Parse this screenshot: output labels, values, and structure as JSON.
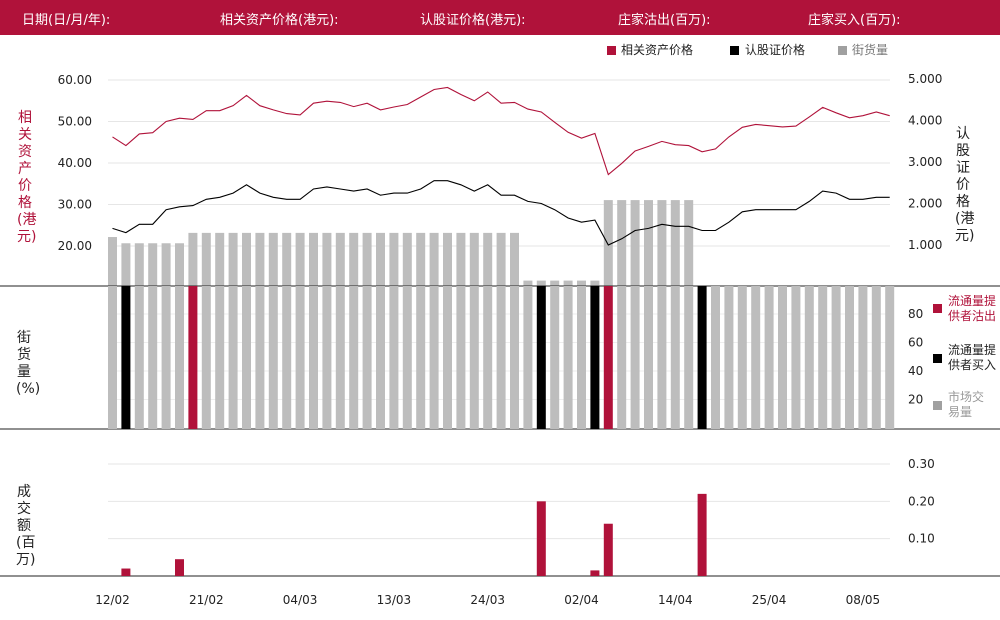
{
  "header": {
    "date_label": "日期(日/月/年):",
    "asset_price_label": "相关资产价格(港元):",
    "warrant_price_label": "认股证价格(港元):",
    "mm_sell_label": "庄家沽出(百万):",
    "mm_buy_label": "庄家买入(百万):"
  },
  "colors": {
    "brand": "#b0123a",
    "warrant": "#000000",
    "grey": "#bdbdbd"
  },
  "legend_top": [
    "相关资产价格",
    "认股证价格",
    "街货量"
  ],
  "legend_right": [
    "流通量提供者沽出",
    "流通量提供者买入",
    "市场交易量"
  ],
  "axis_titles": {
    "price_left": "相关资产价格(港元)",
    "price_right": "认股证价格(港元)",
    "outstanding": "街货量(%)",
    "turnover": "成交额(百万)"
  },
  "chart_data": {
    "type": "line",
    "x_tick_labels": [
      "12/02",
      "21/02",
      "04/03",
      "13/03",
      "24/03",
      "02/04",
      "14/04",
      "25/04",
      "08/05"
    ],
    "x_tick_index": [
      0,
      7,
      14,
      21,
      28,
      35,
      42,
      49,
      56
    ],
    "price_left_ticks": [
      "20.00",
      "30.00",
      "40.00",
      "50.00",
      "60.00"
    ],
    "price_left_range": [
      20,
      60
    ],
    "price_right_ticks": [
      "1.000",
      "2.000",
      "3.000",
      "4.000",
      "5.000"
    ],
    "price_right_range": [
      1,
      5
    ],
    "outstanding_ticks": [
      "20",
      "40",
      "60",
      "80"
    ],
    "turnover_ticks": [
      "0.10",
      "0.20",
      "0.30"
    ],
    "turnover_range": [
      0,
      0.3
    ],
    "series": [
      {
        "name": "相关资产价格",
        "values": [
          46.3,
          44.2,
          47.0,
          47.3,
          50.0,
          50.8,
          50.5,
          52.6,
          52.6,
          53.8,
          56.3,
          53.8,
          52.8,
          51.9,
          51.6,
          54.4,
          54.9,
          54.6,
          53.6,
          54.4,
          52.8,
          53.5,
          54.1,
          55.9,
          57.7,
          58.2,
          56.5,
          55.0,
          57.1,
          54.4,
          54.6,
          53.0,
          52.3,
          49.8,
          47.4,
          46.0,
          47.1,
          37.2,
          39.9,
          42.9,
          44.0,
          45.2,
          44.4,
          44.2,
          42.7,
          43.4,
          46.3,
          48.6,
          49.3,
          49.0,
          48.7,
          48.9,
          51.1,
          53.4,
          52.1,
          50.9,
          51.4,
          52.3,
          51.4
        ]
      },
      {
        "name": "认股证价格",
        "values": [
          1.4,
          1.3,
          1.5,
          1.5,
          1.85,
          1.92,
          1.95,
          2.1,
          2.15,
          2.25,
          2.45,
          2.25,
          2.15,
          2.1,
          2.1,
          2.35,
          2.4,
          2.35,
          2.3,
          2.35,
          2.2,
          2.25,
          2.25,
          2.35,
          2.55,
          2.55,
          2.45,
          2.3,
          2.45,
          2.2,
          2.2,
          2.05,
          2.0,
          1.85,
          1.65,
          1.55,
          1.6,
          1.0,
          1.15,
          1.35,
          1.4,
          1.5,
          1.45,
          1.45,
          1.35,
          1.35,
          1.55,
          1.8,
          1.85,
          1.85,
          1.85,
          1.85,
          2.05,
          2.3,
          2.25,
          2.1,
          2.1,
          2.15,
          2.15
        ]
      }
    ],
    "outstanding_bars": [
      1.18,
      1.03,
      1.03,
      1.03,
      1.03,
      1.03,
      1.28,
      1.28,
      1.28,
      1.28,
      1.28,
      1.28,
      1.28,
      1.28,
      1.28,
      1.28,
      1.28,
      1.28,
      1.28,
      1.28,
      1.28,
      1.28,
      1.28,
      1.28,
      1.28,
      1.28,
      1.28,
      1.28,
      1.28,
      1.28,
      1.28,
      0.13,
      0.13,
      0.13,
      0.13,
      0.13,
      0.13,
      2.07,
      2.07,
      2.07,
      2.07,
      2.07,
      2.07,
      2.07,
      0,
      0,
      0,
      0,
      0,
      0,
      0,
      0,
      0,
      0,
      0,
      0,
      0,
      0,
      0
    ],
    "market_volume": [
      100,
      0,
      100,
      100,
      100,
      100,
      0,
      100,
      100,
      100,
      100,
      100,
      100,
      100,
      100,
      100,
      100,
      100,
      100,
      100,
      100,
      100,
      100,
      100,
      100,
      100,
      100,
      100,
      100,
      100,
      100,
      100,
      0,
      100,
      100,
      100,
      0,
      0,
      100,
      100,
      100,
      100,
      100,
      100,
      0,
      100,
      100,
      100,
      100,
      100,
      100,
      100,
      100,
      100,
      100,
      100,
      100,
      100,
      100
    ],
    "lp_sell": [
      {
        "index": 6,
        "value": 100
      },
      {
        "index": 37,
        "value": 100
      }
    ],
    "lp_buy": [
      {
        "index": 1,
        "value": 100
      },
      {
        "index": 32,
        "value": 100
      },
      {
        "index": 36,
        "value": 100
      },
      {
        "index": 44,
        "value": 100
      }
    ],
    "turnover": [
      {
        "index": 1,
        "value": 0.02
      },
      {
        "index": 5,
        "value": 0.045
      },
      {
        "index": 32,
        "value": 0.2
      },
      {
        "index": 36,
        "value": 0.015
      },
      {
        "index": 37,
        "value": 0.14
      },
      {
        "index": 44,
        "value": 0.22
      }
    ]
  }
}
